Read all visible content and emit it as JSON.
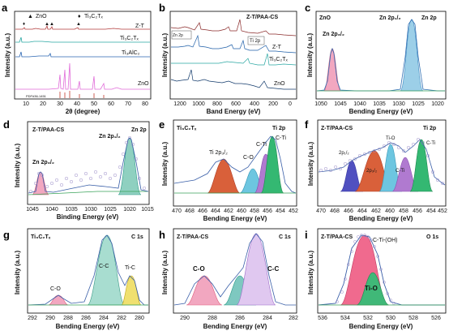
{
  "figure": {
    "panels": {
      "a": {
        "letter": "a",
        "xlabel": "2θ (degree)",
        "ylabel": "Intensity (a.u.)",
        "xticks": [
          "10",
          "20",
          "30",
          "40",
          "50",
          "60",
          "70",
          "80"
        ],
        "legend": [
          "ZnO",
          "Ti₃C₂Tₓ"
        ],
        "curves": [
          "Z-T",
          "Ti₃C₂Tₓ",
          "Ti₃AlC₂",
          "ZnO"
        ],
        "pdf": "PDF#36-1451",
        "colors": [
          "#b23a3a",
          "#2aa7a3",
          "#2b66b3",
          "#e06ad8"
        ]
      },
      "b": {
        "letter": "b",
        "xlabel": "Band Energy (eV)",
        "ylabel": "Intensity (a.u.)",
        "xticks": [
          "1200",
          "1000",
          "800",
          "600",
          "400",
          "200",
          "0"
        ],
        "curves": [
          "Z-T/PAA-CS",
          "Z-T",
          "Ti₃C₂Tₓ",
          "ZnO"
        ],
        "annotations": [
          "Zn 2p",
          "Ti 2p"
        ],
        "colors": [
          "#8a2a2a",
          "#1f5fa8",
          "#2aa7a3",
          "#123a6b"
        ]
      },
      "c": {
        "letter": "c",
        "sample": "ZnO",
        "xlabel": "Bending Energy (eV)",
        "ylabel": "Intensity (a.u.)",
        "xticks": [
          "1050",
          "1045",
          "1040",
          "1035",
          "1030",
          "1025",
          "1020"
        ],
        "peaks": [
          "Zn 2p₃/₂",
          "Zn 2p₁/₂",
          "Zn 2p"
        ]
      },
      "d": {
        "letter": "d",
        "sample": "Z-T/PAA-CS",
        "xlabel": "Binding Energy (eV)",
        "ylabel": "Intensity (a.u.)",
        "xticks": [
          "1045",
          "1040",
          "1035",
          "1030",
          "1025",
          "1020",
          "1015"
        ],
        "peaks": [
          "Zn 2p₃/₂",
          "Zn 2p₁/₂",
          "Zn 2p"
        ]
      },
      "e": {
        "letter": "e",
        "sample": "Ti₃C₂Tₓ",
        "title": "Ti 2p",
        "xlabel": "Bending Energy (eV)",
        "ylabel": "Intensity (a.u.)",
        "xticks": [
          "470",
          "468",
          "466",
          "464",
          "462",
          "460",
          "458",
          "456",
          "454",
          "452"
        ],
        "peaks": [
          "Ti 2p₃/₂",
          "C-O",
          "C-Ti",
          "C-Ti"
        ]
      },
      "f": {
        "letter": "f",
        "sample": "Z-T/PAA-CS",
        "title": "Ti 2p",
        "xlabel": "Bending Energy (eV)",
        "ylabel": "Intensity (a.u.)",
        "xticks": [
          "470",
          "468",
          "466",
          "464",
          "462",
          "460",
          "458",
          "456",
          "454",
          "452"
        ],
        "peaks": [
          "2p₁/₂",
          "2p₃/₂",
          "Ti-O",
          "C-Ti",
          "C-Ti"
        ]
      },
      "g": {
        "letter": "g",
        "sample": "Ti₃C₂Tₓ",
        "title": "C 1s",
        "xlabel": "Bending Energy (eV)",
        "ylabel": "Intensity (a.u.)",
        "xticks": [
          "292",
          "290",
          "288",
          "286",
          "284",
          "282",
          "280"
        ],
        "peaks": [
          "C-O",
          "C-C",
          "Ti-C"
        ]
      },
      "h": {
        "letter": "h",
        "sample": "Z-T/PAA-CS",
        "title": "C 1s",
        "xlabel": "Bending Energy (eV)",
        "ylabel": "Intensity (a.u.)",
        "xticks": [
          "290",
          "288",
          "286",
          "284",
          "282"
        ],
        "peaks": [
          "C-O",
          "C-C"
        ]
      },
      "i": {
        "letter": "i",
        "sample": "Z-T/PAA-CS",
        "title": "O 1s",
        "xlabel": "Bending Energy (eV)",
        "ylabel": "Intensity (a.u.)",
        "xticks": [
          "536",
          "534",
          "532",
          "530",
          "528",
          "526"
        ],
        "peaks": [
          "C-Ti-(OH)",
          "Ti-O"
        ]
      }
    }
  },
  "chart_data": [
    {
      "type": "line",
      "title": "",
      "xlabel": "2θ (degree)",
      "ylabel": "Intensity (a.u.)",
      "xlim": [
        0,
        80
      ],
      "series": [
        {
          "name": "Z-T"
        },
        {
          "name": "Ti₃C₂Tₓ"
        },
        {
          "name": "Ti₃AlC₂"
        },
        {
          "name": "ZnO"
        }
      ],
      "legend_entries": [
        "ZnO",
        "Ti₃C₂Tₓ"
      ]
    },
    {
      "type": "line",
      "xlabel": "Band Energy (eV)",
      "ylabel": "Intensity (a.u.)",
      "xlim": [
        1300,
        0
      ],
      "series": [
        {
          "name": "Z-T/PAA-CS"
        },
        {
          "name": "Z-T"
        },
        {
          "name": "Ti₃C₂Tₓ"
        },
        {
          "name": "ZnO"
        }
      ]
    },
    {
      "type": "line",
      "xlabel": "Bending Energy (eV)",
      "ylabel": "Intensity (a.u.)",
      "xlim": [
        1050,
        1018
      ],
      "peaks": [
        {
          "label": "Zn 2p₃/₂",
          "x": 1044.5
        },
        {
          "label": "Zn 2p₁/₂",
          "x": 1021.5
        }
      ]
    },
    {
      "type": "line",
      "xlabel": "Binding Energy (eV)",
      "ylabel": "Intensity (a.u.)",
      "xlim": [
        1047,
        1015
      ],
      "peaks": [
        {
          "label": "Zn 2p₃/₂",
          "x": 1044.5
        },
        {
          "label": "Zn 2p₁/₂",
          "x": 1021.5
        }
      ]
    },
    {
      "type": "line",
      "xlabel": "Bending Energy (eV)",
      "ylabel": "Intensity (a.u.)",
      "xlim": [
        470,
        452
      ],
      "peaks": [
        {
          "label": "Ti 2p₃/₂",
          "x": 461.5
        },
        {
          "label": "C-O",
          "x": 458.5
        },
        {
          "label": "C-Ti",
          "x": 456.5
        },
        {
          "label": "C-Ti",
          "x": 455
        }
      ]
    },
    {
      "type": "line",
      "xlabel": "Bending Energy (eV)",
      "ylabel": "Intensity (a.u.)",
      "xlim": [
        470,
        452
      ],
      "peaks": [
        {
          "label": "2p₁/₂",
          "x": 464
        },
        {
          "label": "2p₃/₂",
          "x": 461.5
        },
        {
          "label": "Ti-O",
          "x": 458.5
        },
        {
          "label": "C-Ti",
          "x": 456.5
        },
        {
          "label": "C-Ti",
          "x": 455
        }
      ]
    },
    {
      "type": "line",
      "xlabel": "Bending Energy (eV)",
      "ylabel": "Intensity (a.u.)",
      "xlim": [
        293,
        279
      ],
      "peaks": [
        {
          "label": "C-O",
          "x": 288.5
        },
        {
          "label": "C-C",
          "x": 284.8
        },
        {
          "label": "Ti-C",
          "x": 281.8
        }
      ]
    },
    {
      "type": "line",
      "xlabel": "Bending Energy (eV)",
      "ylabel": "Intensity (a.u.)",
      "xlim": [
        291,
        282
      ],
      "peaks": [
        {
          "label": "C-O",
          "x": 288.5
        },
        {
          "label": "C-C",
          "x": 284.8
        }
      ]
    },
    {
      "type": "line",
      "xlabel": "Bending Energy (eV)",
      "ylabel": "Intensity (a.u.)",
      "xlim": [
        537,
        525
      ],
      "peaks": [
        {
          "label": "C-Ti-(OH)",
          "x": 532.5
        },
        {
          "label": "Ti-O",
          "x": 531.5
        }
      ]
    }
  ]
}
